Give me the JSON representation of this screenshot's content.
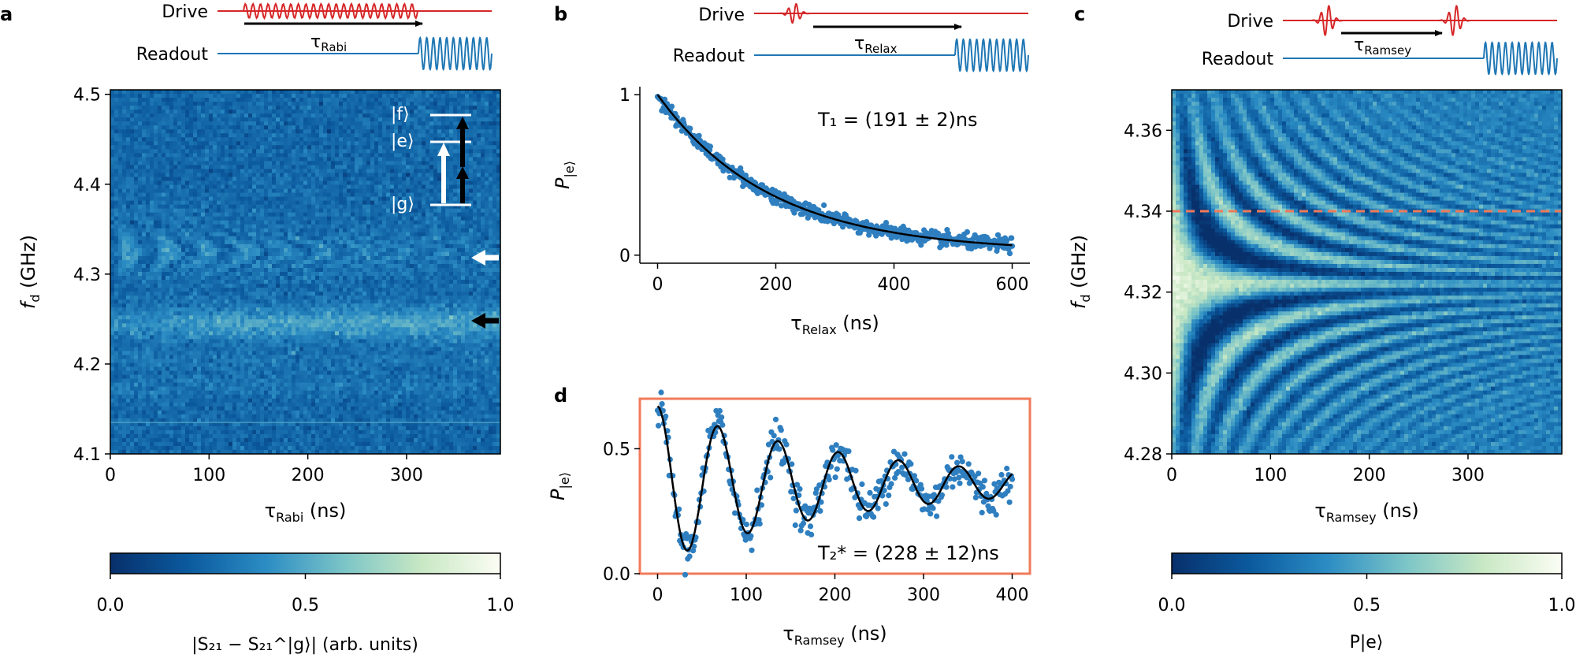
{
  "chart_data": [
    {
      "panel": "a",
      "type": "heatmap",
      "panel_label": "a",
      "pulse": {
        "drive_label": "Drive",
        "readout_label": "Readout",
        "tau_label": "τ",
        "tau_sub": "Rabi"
      },
      "xlabel": "τ",
      "xlabel_sub": "Rabi",
      "xlabel_unit": "(ns)",
      "ylabel": "f",
      "ylabel_sub": "d",
      "ylabel_unit": "(GHz)",
      "xlim": [
        0,
        395
      ],
      "ylim": [
        4.1,
        4.505
      ],
      "xticks": [
        "0",
        "100",
        "200",
        "300"
      ],
      "yticks": [
        "4.1",
        "4.2",
        "4.3",
        "4.4",
        "4.5"
      ],
      "xtick_values": [
        0,
        100,
        200,
        300
      ],
      "ytick_values": [
        4.1,
        4.2,
        4.3,
        4.4,
        4.5
      ],
      "resonance_ge_GHz": 4.325,
      "two_photon_gf_GHz": 4.245,
      "spurious_line_GHz": 4.135,
      "levels": [
        "|f⟩",
        "|e⟩",
        "|g⟩"
      ],
      "colorbar": {
        "min": 0.0,
        "max": 1.0,
        "ticks": [
          "0.0",
          "0.5",
          "1.0"
        ],
        "label": "|S₂₁ − S₂₁^|g⟩|  (arb. units)"
      }
    },
    {
      "panel": "b",
      "type": "scatter",
      "panel_label": "b",
      "pulse": {
        "drive_label": "Drive",
        "readout_label": "Readout",
        "tau_label": "τ",
        "tau_sub": "Relax"
      },
      "xlabel": "τ",
      "xlabel_sub": "Relax",
      "xlabel_unit": "(ns)",
      "ylabel": "P",
      "ylabel_sub": "|e⟩",
      "xlim": [
        -30,
        630
      ],
      "ylim": [
        -0.05,
        1.05
      ],
      "xticks": [
        "0",
        "200",
        "400",
        "600"
      ],
      "yticks": [
        "0",
        "1"
      ],
      "xtick_values": [
        0,
        200,
        400,
        600
      ],
      "ytick_values": [
        0,
        1
      ],
      "fit": {
        "model": "exponential decay",
        "T1_ns": 191,
        "offset": 0.02,
        "amplitude": 0.98
      },
      "x_range_data": [
        0,
        600
      ],
      "n_points": 600,
      "annotation": "T₁ = (191 ± 2)ns"
    },
    {
      "panel": "c",
      "type": "heatmap",
      "panel_label": "c",
      "pulse": {
        "drive_label": "Drive",
        "readout_label": "Readout",
        "tau_label": "τ",
        "tau_sub": "Ramsey"
      },
      "xlabel": "τ",
      "xlabel_sub": "Ramsey",
      "xlabel_unit": "(ns)",
      "ylabel": "f",
      "ylabel_sub": "d",
      "ylabel_unit": "(GHz)",
      "xlim": [
        0,
        395
      ],
      "ylim": [
        4.28,
        4.37
      ],
      "xticks": [
        "0",
        "100",
        "200",
        "300"
      ],
      "yticks": [
        "4.28",
        "4.30",
        "4.32",
        "4.34",
        "4.36"
      ],
      "xtick_values": [
        0,
        100,
        200,
        300
      ],
      "ytick_values": [
        4.28,
        4.3,
        4.32,
        4.34,
        4.36
      ],
      "qubit_frequency_GHz": 4.322,
      "dashed_line_GHz": 4.34,
      "colorbar": {
        "min": 0.0,
        "max": 1.0,
        "ticks": [
          "0.0",
          "0.5",
          "1.0"
        ],
        "label": "P|e⟩"
      }
    },
    {
      "panel": "d",
      "type": "scatter",
      "panel_label": "d",
      "xlabel": "τ",
      "xlabel_sub": "Ramsey",
      "xlabel_unit": "(ns)",
      "ylabel": "P",
      "ylabel_sub": "|e⟩",
      "xlim": [
        -20,
        420
      ],
      "ylim": [
        0.0,
        0.7
      ],
      "xticks": [
        "0",
        "100",
        "200",
        "300",
        "400"
      ],
      "yticks": [
        "0.0",
        "0.5"
      ],
      "xtick_values": [
        0,
        100,
        200,
        300,
        400
      ],
      "ytick_values": [
        0.0,
        0.5
      ],
      "fit": {
        "model": "damped cosine",
        "T2star_ns": 228,
        "offset": 0.36,
        "amplitude": 0.31,
        "detuning_MHz": 14.7,
        "phase": 0.0
      },
      "x_range_data": [
        0,
        400
      ],
      "n_points": 400,
      "annotation": "T₂* = (228 ± 12)ns"
    }
  ]
}
